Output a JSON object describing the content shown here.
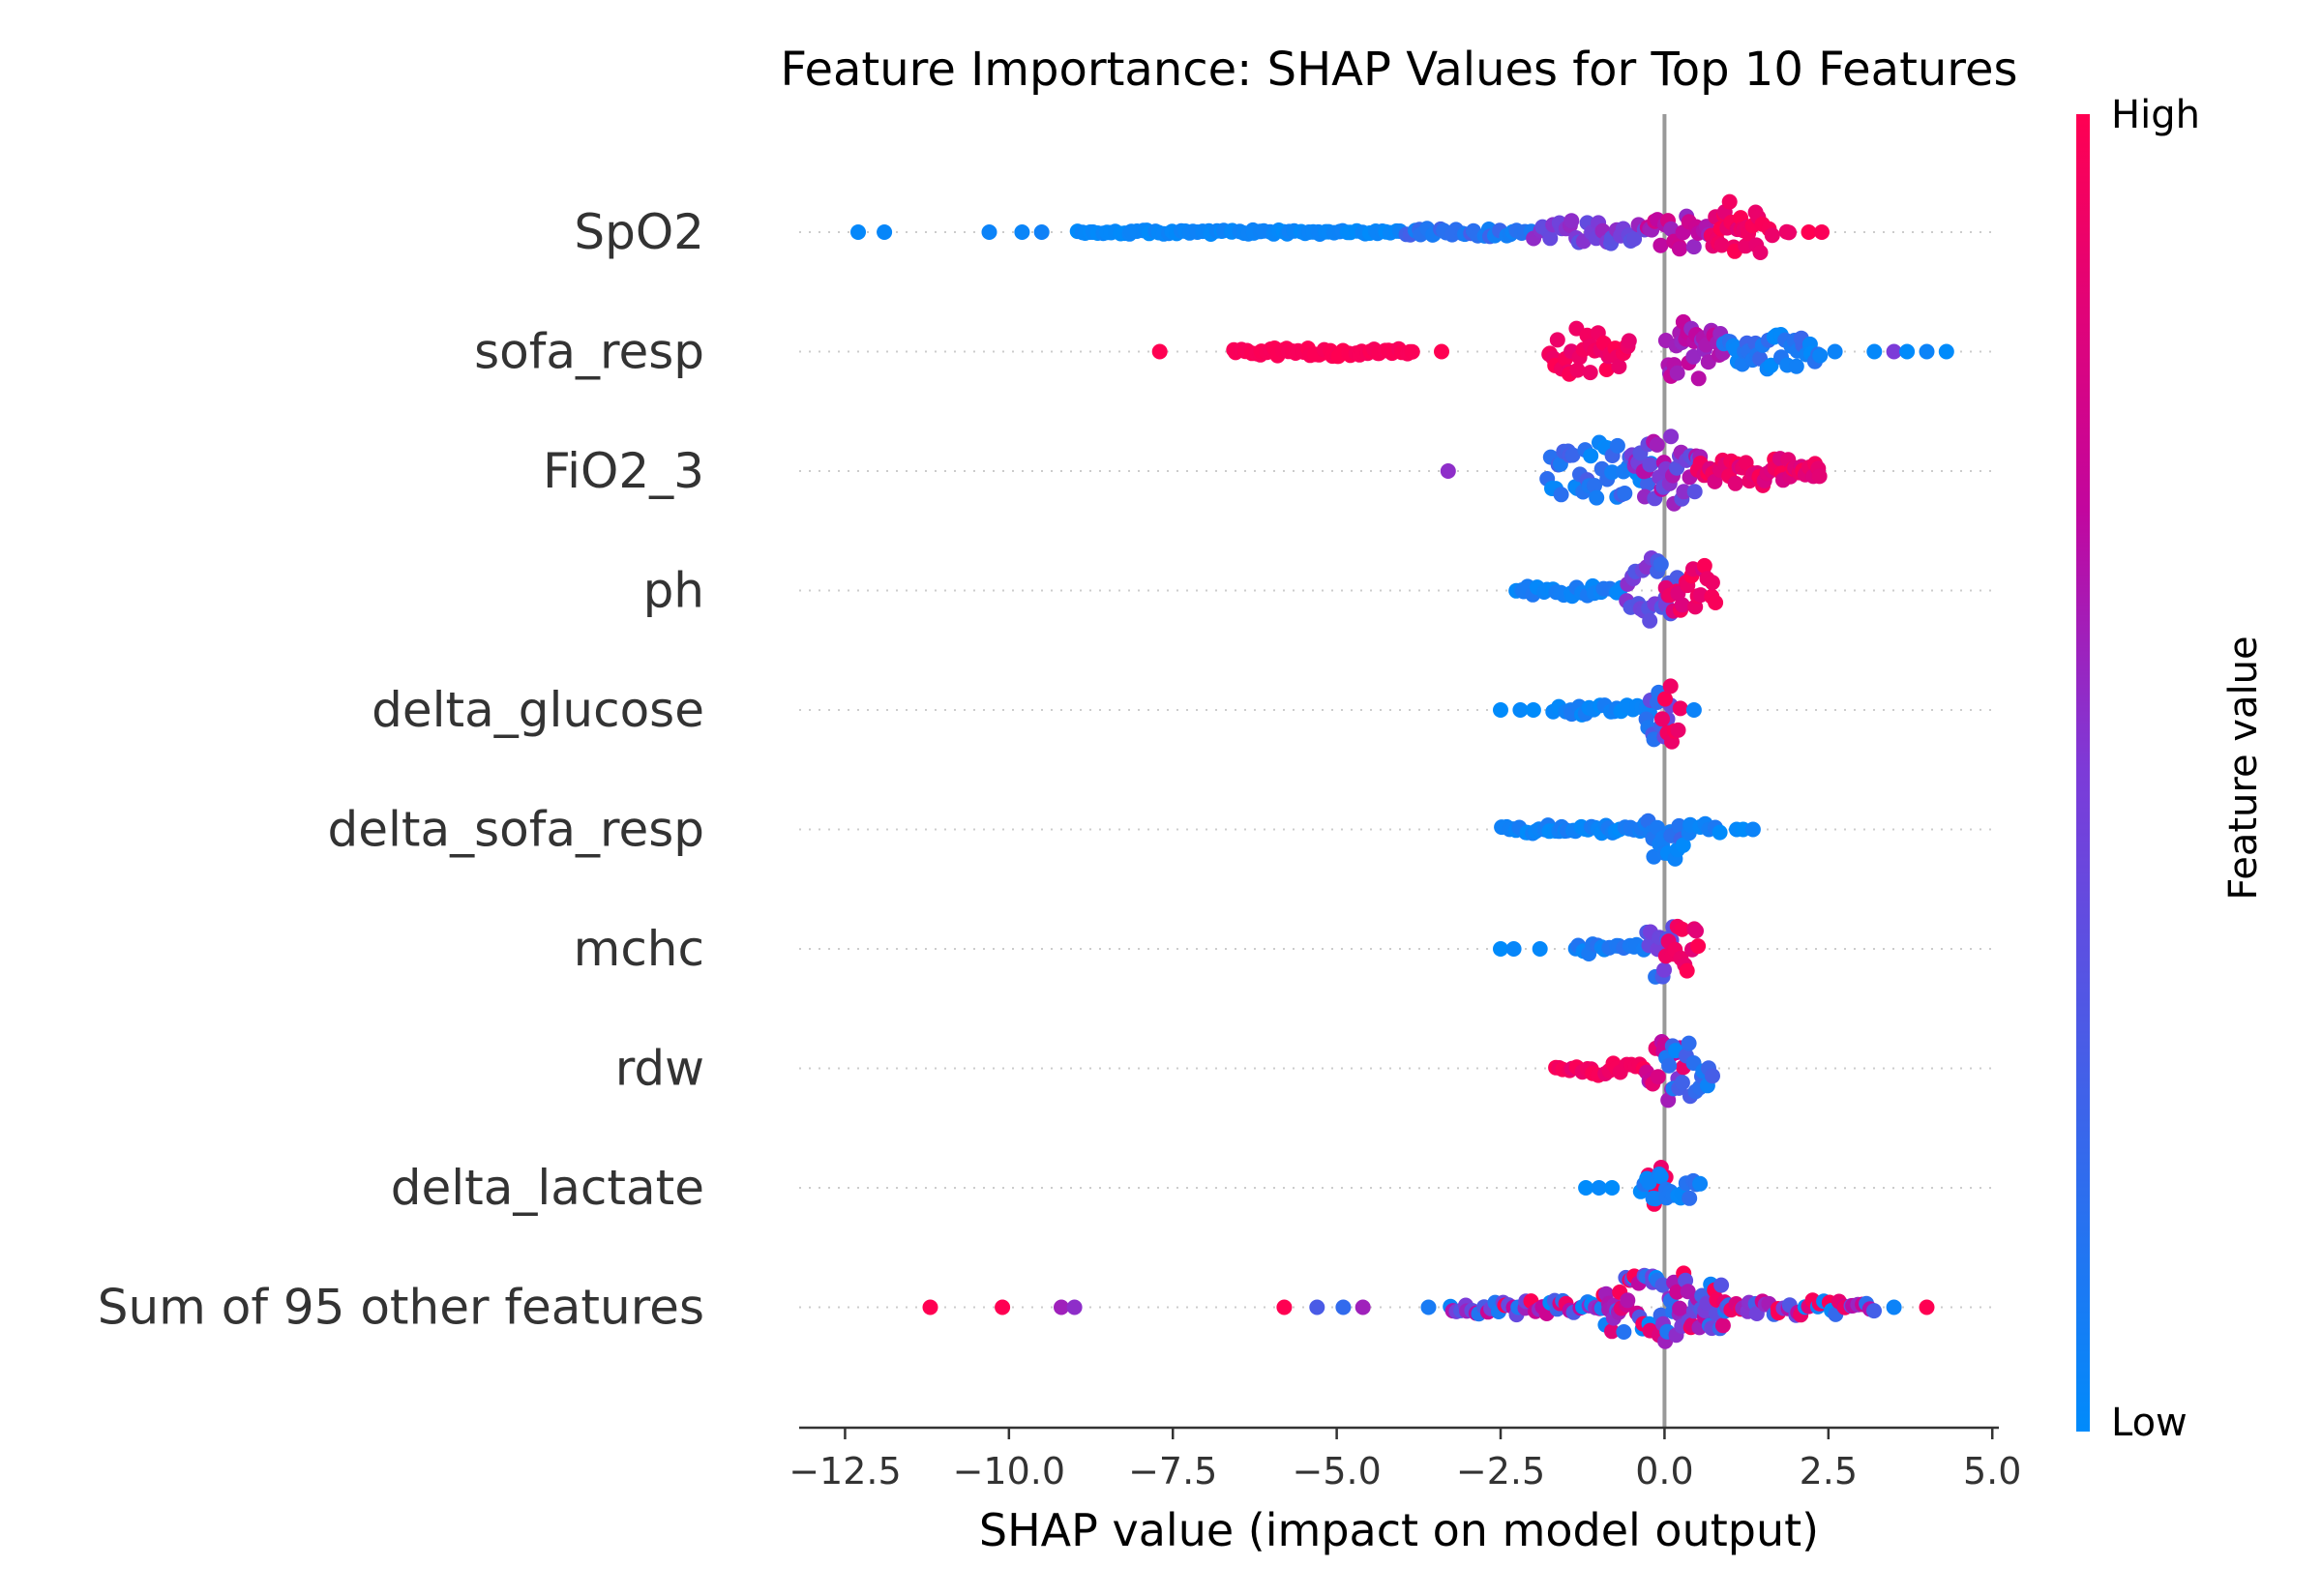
{
  "chart_data": {
    "type": "scatter",
    "subtype": "shap-beeswarm",
    "title": "Feature Importance: SHAP Values for Top 10 Features",
    "xlabel": "SHAP value (impact on model output)",
    "xlim": [
      -13.2,
      5.1
    ],
    "xticks": [
      -12.5,
      -10.0,
      -7.5,
      -5.0,
      -2.5,
      0.0,
      2.5,
      5.0
    ],
    "xtick_labels": [
      "−12.5",
      "−10.0",
      "−7.5",
      "−5.0",
      "−2.5",
      "0.0",
      "2.5",
      "5.0"
    ],
    "zero_line": 0,
    "grid": false,
    "colorbar": {
      "title": "Feature value",
      "high_label": "High",
      "low_label": "Low",
      "low_color": "#008bfb",
      "high_color": "#ff0052"
    },
    "features": [
      {
        "name": "SpO2",
        "segments": [
          {
            "from": -9.0,
            "to": -4.0,
            "spread": 0.04,
            "value": [
              0.0,
              0.06
            ],
            "density": 1.0
          },
          {
            "from": -4.0,
            "to": -2.0,
            "spread": 0.08,
            "value": [
              0.05,
              0.3
            ],
            "density": 1.0
          },
          {
            "from": -2.0,
            "to": -0.3,
            "spread": 0.22,
            "value": [
              0.35,
              0.6
            ],
            "density": 1.2
          },
          {
            "from": -0.3,
            "to": 0.7,
            "spread": 0.3,
            "value": [
              0.55,
              0.8
            ],
            "density": 1.4
          },
          {
            "from": 0.7,
            "to": 1.5,
            "spread": 0.62,
            "value": [
              0.85,
              1.0
            ],
            "density": 2.4
          },
          {
            "from": 1.5,
            "to": 2.0,
            "spread": 0.12,
            "value": [
              0.9,
              1.0
            ],
            "density": 0.6
          }
        ],
        "outliers": [
          {
            "x": -12.3,
            "v": 0.02
          },
          {
            "x": -11.9,
            "v": 0.03
          },
          {
            "x": -10.3,
            "v": 0.05
          },
          {
            "x": -9.8,
            "v": 0.04
          },
          {
            "x": -9.5,
            "v": 0.06
          },
          {
            "x": 2.2,
            "v": 1.0
          },
          {
            "x": 2.4,
            "v": 0.98
          }
        ]
      },
      {
        "name": "sofa_resp",
        "segments": [
          {
            "from": -6.6,
            "to": -3.8,
            "spread": 0.08,
            "value": [
              0.96,
              1.0
            ],
            "density": 1.2
          },
          {
            "from": -1.8,
            "to": -0.5,
            "spread": 0.48,
            "value": [
              0.88,
              1.0
            ],
            "density": 1.6
          },
          {
            "from": 0.0,
            "to": 0.9,
            "spread": 0.62,
            "value": [
              0.55,
              0.72
            ],
            "density": 2.2
          },
          {
            "from": 0.9,
            "to": 2.4,
            "spread": 0.3,
            "value": [
              0.0,
              0.25
            ],
            "density": 1.6
          }
        ],
        "outliers": [
          {
            "x": -7.7,
            "v": 1.0
          },
          {
            "x": -3.4,
            "v": 1.0
          },
          {
            "x": 2.6,
            "v": 0.05
          },
          {
            "x": 3.2,
            "v": 0.02
          },
          {
            "x": 3.5,
            "v": 0.5
          },
          {
            "x": 3.7,
            "v": 0.0
          },
          {
            "x": 4.0,
            "v": 0.05
          },
          {
            "x": 4.3,
            "v": 0.0
          }
        ]
      },
      {
        "name": "FiO2_3",
        "segments": [
          {
            "from": -1.8,
            "to": -0.2,
            "spread": 0.55,
            "value": [
              0.0,
              0.3
            ],
            "density": 1.8
          },
          {
            "from": -0.5,
            "to": 0.6,
            "spread": 0.6,
            "value": [
              0.35,
              0.7
            ],
            "density": 2.2
          },
          {
            "from": 0.5,
            "to": 2.4,
            "spread": 0.25,
            "value": [
              0.8,
              1.0
            ],
            "density": 1.6
          }
        ],
        "outliers": [
          {
            "x": -3.3,
            "v": 0.55
          }
        ]
      },
      {
        "name": "ph",
        "segments": [
          {
            "from": -2.3,
            "to": -0.6,
            "spread": 0.1,
            "value": [
              0.0,
              0.15
            ],
            "density": 1.0
          },
          {
            "from": -0.6,
            "to": 0.2,
            "spread": 0.6,
            "value": [
              0.2,
              0.55
            ],
            "density": 2.2
          },
          {
            "from": 0.0,
            "to": 0.8,
            "spread": 0.5,
            "value": [
              0.8,
              1.0
            ],
            "density": 1.8
          }
        ],
        "outliers": []
      },
      {
        "name": "delta_glucose",
        "segments": [
          {
            "from": -1.7,
            "to": -0.2,
            "spread": 0.1,
            "value": [
              0.0,
              0.12
            ],
            "density": 1.0
          },
          {
            "from": -0.3,
            "to": 0.1,
            "spread": 0.55,
            "value": [
              0.1,
              0.45
            ],
            "density": 2.0
          },
          {
            "from": -0.05,
            "to": 0.25,
            "spread": 0.55,
            "value": [
              0.9,
              1.0
            ],
            "density": 1.8
          }
        ],
        "outliers": [
          {
            "x": -2.5,
            "v": 0.0
          },
          {
            "x": -2.2,
            "v": 0.02
          },
          {
            "x": -2.0,
            "v": 0.0
          },
          {
            "x": 0.45,
            "v": 0.05
          }
        ]
      },
      {
        "name": "delta_sofa_resp",
        "segments": [
          {
            "from": -2.5,
            "to": -0.3,
            "spread": 0.08,
            "value": [
              0.0,
              0.12
            ],
            "density": 1.2
          },
          {
            "from": -0.3,
            "to": 0.3,
            "spread": 0.62,
            "value": [
              0.0,
              0.25
            ],
            "density": 2.0
          },
          {
            "from": 0.3,
            "to": 0.9,
            "spread": 0.12,
            "value": [
              0.0,
              0.12
            ],
            "density": 0.8
          }
        ],
        "outliers": [
          {
            "x": 1.1,
            "v": 0.02
          },
          {
            "x": 1.2,
            "v": 0.0
          },
          {
            "x": 1.35,
            "v": 0.05
          }
        ]
      },
      {
        "name": "mchc",
        "segments": [
          {
            "from": -1.4,
            "to": -0.3,
            "spread": 0.1,
            "value": [
              0.0,
              0.2
            ],
            "density": 1.0
          },
          {
            "from": -0.3,
            "to": 0.2,
            "spread": 0.55,
            "value": [
              0.1,
              0.5
            ],
            "density": 1.6
          },
          {
            "from": 0.0,
            "to": 0.55,
            "spread": 0.45,
            "value": [
              0.85,
              1.0
            ],
            "density": 1.6
          }
        ],
        "outliers": [
          {
            "x": -2.5,
            "v": 0.0
          },
          {
            "x": -2.3,
            "v": 0.03
          },
          {
            "x": -1.9,
            "v": 0.02
          }
        ]
      },
      {
        "name": "rdw",
        "segments": [
          {
            "from": -1.7,
            "to": -0.3,
            "spread": 0.12,
            "value": [
              0.88,
              1.0
            ],
            "density": 1.0
          },
          {
            "from": -0.3,
            "to": 0.3,
            "spread": 0.6,
            "value": [
              0.5,
              0.9
            ],
            "density": 1.8
          },
          {
            "from": 0.0,
            "to": 0.75,
            "spread": 0.5,
            "value": [
              0.0,
              0.3
            ],
            "density": 1.6
          }
        ],
        "outliers": []
      },
      {
        "name": "delta_lactate",
        "segments": [
          {
            "from": -0.25,
            "to": 0.05,
            "spread": 0.62,
            "value": [
              0.9,
              1.0
            ],
            "density": 1.8
          },
          {
            "from": -0.4,
            "to": 0.55,
            "spread": 0.25,
            "value": [
              0.0,
              0.2
            ],
            "density": 1.4
          }
        ],
        "outliers": [
          {
            "x": -1.2,
            "v": 0.0
          },
          {
            "x": -1.0,
            "v": 0.02
          },
          {
            "x": -0.8,
            "v": 0.0
          }
        ]
      },
      {
        "name": "Sum of 95 other features",
        "segments": [
          {
            "from": -3.3,
            "to": -1.0,
            "spread": 0.14,
            "value": [
              0.0,
              1.0
            ],
            "density": 1.2
          },
          {
            "from": -1.0,
            "to": 1.0,
            "spread": 0.62,
            "value": [
              0.0,
              1.0
            ],
            "density": 2.6
          },
          {
            "from": 1.0,
            "to": 3.2,
            "spread": 0.14,
            "value": [
              0.0,
              1.0
            ],
            "density": 1.2
          }
        ],
        "outliers": [
          {
            "x": -11.2,
            "v": 1.0
          },
          {
            "x": -10.1,
            "v": 1.0
          },
          {
            "x": -9.2,
            "v": 0.6
          },
          {
            "x": -9.0,
            "v": 0.55
          },
          {
            "x": -5.8,
            "v": 1.0
          },
          {
            "x": -5.3,
            "v": 0.3
          },
          {
            "x": -4.9,
            "v": 0.2
          },
          {
            "x": -4.6,
            "v": 0.6
          },
          {
            "x": -3.6,
            "v": 0.1
          },
          {
            "x": 3.5,
            "v": 0.05
          },
          {
            "x": 4.0,
            "v": 1.0
          }
        ]
      }
    ]
  }
}
